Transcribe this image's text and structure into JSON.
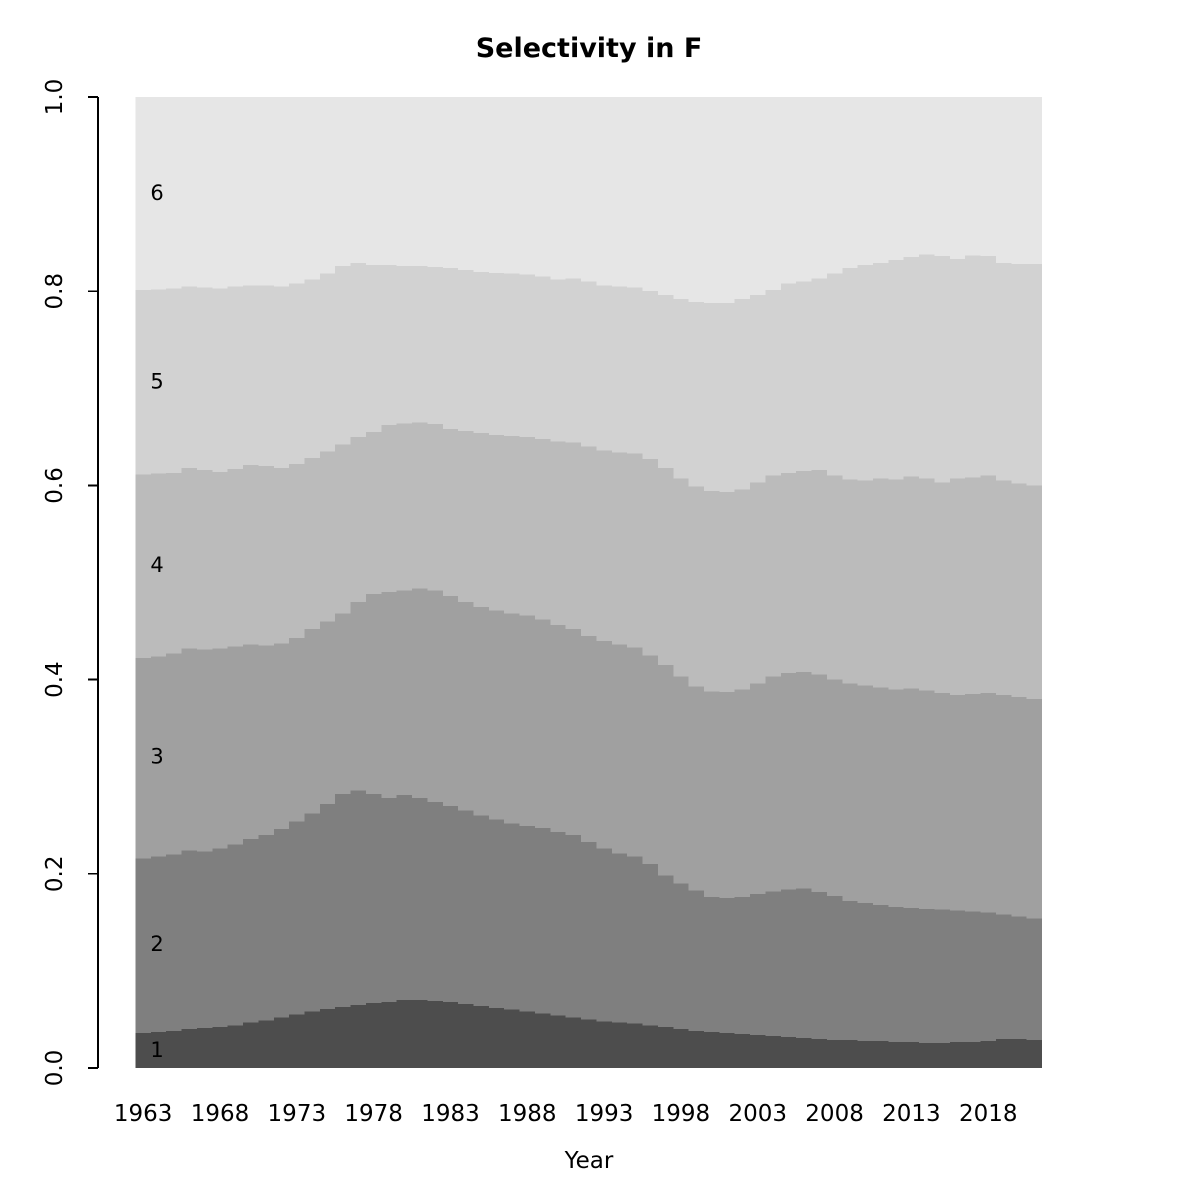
{
  "chart_data": {
    "type": "area",
    "stacked": true,
    "title": "Selectivity in F",
    "xlabel": "Year",
    "ylabel": "",
    "x_range": [
      1963,
      2021
    ],
    "n_years": 59,
    "ylim": [
      0.0,
      1.0
    ],
    "grid": false,
    "legend_position": "none (bands labeled inline)",
    "x_tick_labels": [
      "1963",
      "1968",
      "1973",
      "1978",
      "1983",
      "1988",
      "1993",
      "1998",
      "2003",
      "2008",
      "2013",
      "2018"
    ],
    "y_tick_labels": [
      "0.0",
      "0.2",
      "0.4",
      "0.6",
      "0.8",
      "1.0"
    ],
    "axis_color": "#000000",
    "background_color": "#ffffff",
    "series_note": "cum_top arrays give the cumulative stacked proportion (top boundary of each age band) for every year 1963-2021",
    "series": [
      {
        "name": "1",
        "color": "#4d4d4d",
        "cum_top": [
          0.036,
          0.037,
          0.038,
          0.04,
          0.041,
          0.042,
          0.044,
          0.047,
          0.049,
          0.052,
          0.055,
          0.058,
          0.061,
          0.063,
          0.065,
          0.067,
          0.068,
          0.07,
          0.07,
          0.069,
          0.068,
          0.066,
          0.064,
          0.062,
          0.06,
          0.058,
          0.056,
          0.054,
          0.052,
          0.05,
          0.048,
          0.047,
          0.046,
          0.044,
          0.042,
          0.04,
          0.038,
          0.037,
          0.036,
          0.035,
          0.034,
          0.033,
          0.032,
          0.031,
          0.03,
          0.029,
          0.029,
          0.028,
          0.028,
          0.027,
          0.027,
          0.026,
          0.026,
          0.027,
          0.027,
          0.028,
          0.03,
          0.03,
          0.029
        ]
      },
      {
        "name": "2",
        "color": "#7f7f7f",
        "cum_top": [
          0.216,
          0.218,
          0.22,
          0.224,
          0.223,
          0.226,
          0.23,
          0.236,
          0.24,
          0.246,
          0.254,
          0.262,
          0.272,
          0.282,
          0.286,
          0.282,
          0.278,
          0.281,
          0.278,
          0.274,
          0.27,
          0.265,
          0.26,
          0.256,
          0.252,
          0.249,
          0.247,
          0.243,
          0.24,
          0.233,
          0.226,
          0.221,
          0.218,
          0.21,
          0.198,
          0.19,
          0.183,
          0.176,
          0.175,
          0.176,
          0.179,
          0.182,
          0.184,
          0.185,
          0.181,
          0.177,
          0.172,
          0.17,
          0.168,
          0.166,
          0.165,
          0.164,
          0.163,
          0.162,
          0.161,
          0.16,
          0.158,
          0.156,
          0.154
        ]
      },
      {
        "name": "3",
        "color": "#a0a0a0",
        "cum_top": [
          0.422,
          0.424,
          0.427,
          0.432,
          0.431,
          0.432,
          0.434,
          0.436,
          0.435,
          0.437,
          0.443,
          0.452,
          0.46,
          0.468,
          0.48,
          0.488,
          0.49,
          0.492,
          0.494,
          0.492,
          0.486,
          0.48,
          0.475,
          0.471,
          0.468,
          0.466,
          0.462,
          0.456,
          0.452,
          0.445,
          0.44,
          0.436,
          0.433,
          0.425,
          0.415,
          0.403,
          0.393,
          0.388,
          0.387,
          0.39,
          0.396,
          0.403,
          0.407,
          0.408,
          0.405,
          0.4,
          0.396,
          0.394,
          0.392,
          0.39,
          0.391,
          0.389,
          0.386,
          0.384,
          0.385,
          0.386,
          0.384,
          0.382,
          0.38
        ]
      },
      {
        "name": "4",
        "color": "#bbbbbb",
        "cum_top": [
          0.611,
          0.612,
          0.613,
          0.618,
          0.616,
          0.614,
          0.617,
          0.621,
          0.62,
          0.618,
          0.622,
          0.628,
          0.635,
          0.642,
          0.65,
          0.655,
          0.662,
          0.664,
          0.665,
          0.663,
          0.658,
          0.656,
          0.654,
          0.652,
          0.651,
          0.65,
          0.648,
          0.645,
          0.644,
          0.64,
          0.636,
          0.634,
          0.633,
          0.627,
          0.618,
          0.607,
          0.599,
          0.594,
          0.593,
          0.596,
          0.603,
          0.61,
          0.613,
          0.615,
          0.616,
          0.61,
          0.606,
          0.605,
          0.607,
          0.606,
          0.609,
          0.607,
          0.603,
          0.607,
          0.608,
          0.61,
          0.605,
          0.602,
          0.6
        ]
      },
      {
        "name": "5",
        "color": "#d2d2d2",
        "cum_top": [
          0.801,
          0.802,
          0.803,
          0.805,
          0.804,
          0.803,
          0.805,
          0.806,
          0.806,
          0.805,
          0.808,
          0.812,
          0.818,
          0.826,
          0.829,
          0.827,
          0.827,
          0.826,
          0.826,
          0.825,
          0.824,
          0.822,
          0.82,
          0.819,
          0.818,
          0.817,
          0.815,
          0.812,
          0.813,
          0.81,
          0.806,
          0.805,
          0.804,
          0.8,
          0.796,
          0.792,
          0.789,
          0.788,
          0.788,
          0.792,
          0.796,
          0.801,
          0.808,
          0.81,
          0.813,
          0.818,
          0.824,
          0.827,
          0.829,
          0.832,
          0.835,
          0.838,
          0.836,
          0.833,
          0.837,
          0.836,
          0.829,
          0.828,
          0.828
        ]
      },
      {
        "name": "6",
        "color": "#e6e6e6",
        "cum_top_constant": 1.0
      }
    ]
  }
}
